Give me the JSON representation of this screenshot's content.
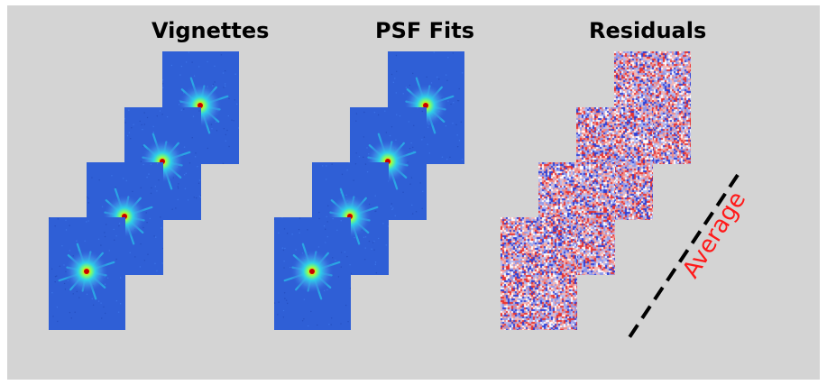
{
  "columns": [
    {
      "key": "vignettes",
      "title": "Vignettes",
      "kind": "star"
    },
    {
      "key": "psf_fits",
      "title": "PSF Fits",
      "kind": "star"
    },
    {
      "key": "residuals",
      "title": "Residuals",
      "kind": "noise"
    }
  ],
  "average_label": "Average",
  "colors": {
    "background": "#d4d4d4",
    "tile_blue": "#2f5fd6",
    "average_text": "#ff1a1a",
    "residual_red": "#e8312e",
    "residual_blue": "#2b3ed6"
  }
}
